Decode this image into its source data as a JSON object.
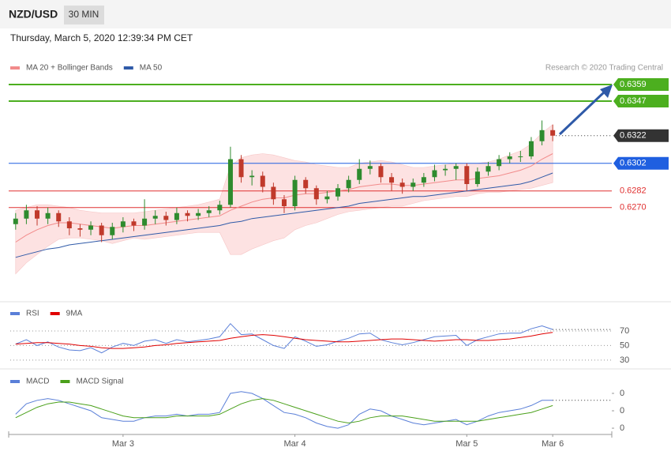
{
  "header": {
    "symbol": "NZD/USD",
    "interval": "30 MIN",
    "timestamp": "Thursday, March 5, 2020 12:39:34 PM CET"
  },
  "chart_data": [
    {
      "type": "candlestick",
      "credit": "Research © 2020 Trading Central",
      "ylim": [
        0.6203,
        0.6383
      ],
      "candles": {
        "up_color": "#2e8b2e",
        "down_color": "#c0392b",
        "open": [
          0.6258,
          0.6262,
          0.6268,
          0.6262,
          0.6266,
          0.626,
          0.6255,
          0.6254,
          0.6257,
          0.625,
          0.6256,
          0.626,
          0.6257,
          0.6262,
          0.6264,
          0.6261,
          0.6266,
          0.6264,
          0.6266,
          0.6268,
          0.6272,
          0.6305,
          0.6292,
          0.6293,
          0.6285,
          0.6276,
          0.6271,
          0.629,
          0.6284,
          0.6276,
          0.6278,
          0.6284,
          0.629,
          0.6298,
          0.63,
          0.6292,
          0.6288,
          0.6285,
          0.6288,
          0.6292,
          0.6297,
          0.6298,
          0.63,
          0.6287,
          0.6296,
          0.63,
          0.6305,
          0.6307,
          0.6307,
          0.6318,
          0.6326,
          null,
          null,
          null,
          null,
          null
        ],
        "high": [
          0.6266,
          0.6272,
          0.6271,
          0.627,
          0.6268,
          0.6263,
          0.6258,
          0.626,
          0.6259,
          0.6259,
          0.6263,
          0.6262,
          0.6276,
          0.6268,
          0.6267,
          0.627,
          0.6268,
          0.6269,
          0.6271,
          0.6275,
          0.6314,
          0.6308,
          0.6297,
          0.6296,
          0.6288,
          0.6279,
          0.6293,
          0.6292,
          0.6286,
          0.6282,
          0.6287,
          0.6293,
          0.6305,
          0.6304,
          0.6302,
          0.6295,
          0.6291,
          0.6291,
          0.6295,
          0.6301,
          0.6301,
          0.6302,
          0.6302,
          0.6299,
          0.6303,
          0.6308,
          0.631,
          0.6311,
          0.6321,
          0.6333,
          0.633,
          null,
          null,
          null,
          null,
          null
        ],
        "low": [
          0.6254,
          0.6258,
          0.6257,
          0.6258,
          0.6256,
          0.625,
          0.6249,
          0.625,
          0.6245,
          0.6247,
          0.6252,
          0.6253,
          0.6254,
          0.6258,
          0.6257,
          0.6258,
          0.626,
          0.6261,
          0.6263,
          0.6265,
          0.627,
          0.6288,
          0.6286,
          0.6281,
          0.6272,
          0.6266,
          0.6268,
          0.628,
          0.6272,
          0.6273,
          0.6275,
          0.6281,
          0.6287,
          0.6294,
          0.6288,
          0.6282,
          0.628,
          0.6282,
          0.6285,
          0.6289,
          0.6293,
          0.629,
          0.6282,
          0.6285,
          0.6293,
          0.6297,
          0.6302,
          0.6303,
          0.6305,
          0.6315,
          0.6318,
          null,
          null,
          null,
          null,
          null
        ],
        "close": [
          0.6262,
          0.6268,
          0.6262,
          0.6266,
          0.626,
          0.6255,
          0.6254,
          0.6257,
          0.625,
          0.6256,
          0.626,
          0.6257,
          0.6262,
          0.6264,
          0.6261,
          0.6266,
          0.6264,
          0.6266,
          0.6268,
          0.6272,
          0.6305,
          0.6292,
          0.6293,
          0.6285,
          0.6276,
          0.6271,
          0.629,
          0.6284,
          0.6276,
          0.6278,
          0.6284,
          0.629,
          0.6298,
          0.63,
          0.6292,
          0.6288,
          0.6285,
          0.6288,
          0.6292,
          0.6297,
          0.6298,
          0.63,
          0.6287,
          0.6296,
          0.63,
          0.6305,
          0.6307,
          0.6307,
          0.6318,
          0.6326,
          0.6322,
          null,
          null,
          null,
          null,
          null
        ]
      },
      "series": [
        {
          "name": "MA 20 + Bollinger Bands",
          "color": "#f28b8b",
          "band_color": "#fde2e2",
          "values": [
            0.6245,
            0.625,
            0.6254,
            0.6257,
            0.6259,
            0.6259,
            0.6258,
            0.6257,
            0.6256,
            0.6255,
            0.6256,
            0.6257,
            0.6257,
            0.6258,
            0.6259,
            0.626,
            0.6261,
            0.6262,
            0.6263,
            0.6264,
            0.6268,
            0.6271,
            0.6274,
            0.6276,
            0.6277,
            0.6277,
            0.6279,
            0.628,
            0.628,
            0.6281,
            0.6282,
            0.6283,
            0.6285,
            0.6286,
            0.6287,
            0.6287,
            0.6286,
            0.6286,
            0.6287,
            0.6288,
            0.6289,
            0.629,
            0.629,
            0.6291,
            0.6292,
            0.6293,
            0.6295,
            0.6297,
            0.63,
            0.6305,
            0.6309,
            null,
            null,
            null,
            null,
            null
          ],
          "upper": [
            0.6268,
            0.627,
            0.6272,
            0.6272,
            0.6271,
            0.627,
            0.6268,
            0.6267,
            0.6266,
            0.6266,
            0.6266,
            0.6266,
            0.6267,
            0.6268,
            0.6269,
            0.627,
            0.6271,
            0.6272,
            0.6274,
            0.6276,
            0.63,
            0.6306,
            0.6308,
            0.6309,
            0.6308,
            0.6306,
            0.6304,
            0.6303,
            0.6301,
            0.63,
            0.6299,
            0.6299,
            0.6302,
            0.6303,
            0.6304,
            0.6303,
            0.6301,
            0.6299,
            0.6299,
            0.63,
            0.6301,
            0.6302,
            0.6302,
            0.6302,
            0.6303,
            0.6305,
            0.6308,
            0.6311,
            0.6316,
            0.6324,
            0.633,
            null,
            null,
            null,
            null,
            null
          ],
          "lower": [
            0.6222,
            0.623,
            0.6236,
            0.6242,
            0.6247,
            0.6248,
            0.6248,
            0.6247,
            0.6246,
            0.6244,
            0.6246,
            0.6248,
            0.6247,
            0.6248,
            0.6249,
            0.625,
            0.6251,
            0.6252,
            0.6252,
            0.6252,
            0.6236,
            0.6236,
            0.624,
            0.6243,
            0.6246,
            0.6248,
            0.6254,
            0.6257,
            0.6259,
            0.6262,
            0.6265,
            0.6267,
            0.6268,
            0.6269,
            0.627,
            0.6271,
            0.6271,
            0.6273,
            0.6275,
            0.6276,
            0.6277,
            0.6278,
            0.6278,
            0.628,
            0.6281,
            0.6281,
            0.6282,
            0.6283,
            0.6284,
            0.6286,
            0.6288,
            null,
            null,
            null,
            null,
            null
          ]
        },
        {
          "name": "MA 50",
          "color": "#2f5aa8",
          "values": [
            0.6234,
            0.6236,
            0.6238,
            0.624,
            0.6241,
            0.6243,
            0.6244,
            0.6245,
            0.6246,
            0.6247,
            0.6248,
            0.6249,
            0.625,
            0.6251,
            0.6252,
            0.6253,
            0.6254,
            0.6255,
            0.6256,
            0.6257,
            0.6259,
            0.626,
            0.6262,
            0.6263,
            0.6264,
            0.6265,
            0.6266,
            0.6267,
            0.6268,
            0.6269,
            0.627,
            0.6271,
            0.6273,
            0.6274,
            0.6275,
            0.6276,
            0.6277,
            0.6278,
            0.6278,
            0.6279,
            0.628,
            0.6281,
            0.6282,
            0.6283,
            0.6284,
            0.6285,
            0.6286,
            0.6287,
            0.6289,
            0.6292,
            0.6295,
            null,
            null,
            null,
            null,
            null
          ]
        }
      ],
      "levels": [
        {
          "value": 0.6359,
          "color": "#4caf1f",
          "line": "solid",
          "style": "box"
        },
        {
          "value": 0.6347,
          "color": "#4caf1f",
          "line": "solid",
          "style": "box"
        },
        {
          "value": 0.6322,
          "color": "#333333",
          "line": "dotted",
          "style": "box"
        },
        {
          "value": 0.6302,
          "color": "#1f5fe0",
          "line": "solid",
          "style": "box"
        },
        {
          "value": 0.6282,
          "color": "#e03030",
          "line": "solid",
          "style": "text"
        },
        {
          "value": 0.627,
          "label": "0.6270",
          "color": "#e03030",
          "line": "solid",
          "style": "text"
        }
      ]
    },
    {
      "type": "line",
      "ylim": [
        18,
        110
      ],
      "yticks": [
        70,
        50,
        30
      ],
      "grid": true,
      "series": [
        {
          "name": "RSI",
          "color": "#5a7fd8",
          "values": [
            52,
            58,
            50,
            55,
            48,
            44,
            43,
            47,
            40,
            48,
            53,
            50,
            56,
            58,
            53,
            58,
            55,
            57,
            59,
            62,
            80,
            65,
            66,
            58,
            50,
            46,
            62,
            56,
            49,
            51,
            56,
            60,
            66,
            67,
            58,
            54,
            51,
            54,
            58,
            62,
            63,
            64,
            50,
            58,
            62,
            66,
            67,
            67,
            73,
            77,
            72,
            null,
            null,
            null,
            null,
            null
          ]
        },
        {
          "name": "9MA",
          "color": "#e00000",
          "values": [
            52,
            53,
            54,
            54,
            53,
            52,
            50,
            49,
            47,
            46,
            46,
            47,
            48,
            50,
            51,
            53,
            54,
            55,
            56,
            57,
            60,
            62,
            64,
            65,
            64,
            62,
            60,
            58,
            57,
            56,
            55,
            55,
            56,
            57,
            58,
            59,
            59,
            58,
            57,
            56,
            57,
            58,
            58,
            57,
            57,
            58,
            59,
            61,
            63,
            66,
            68,
            null,
            null,
            null,
            null,
            null
          ]
        }
      ]
    },
    {
      "type": "line",
      "ylim": [
        -0.00136,
        0.00236
      ],
      "yticks": [
        {
          "value": 0.001,
          "label": "0"
        },
        0,
        {
          "value": -0.001,
          "label": "0"
        }
      ],
      "grid": false,
      "categories": [
        null,
        null,
        null,
        null,
        null,
        null,
        null,
        null,
        null,
        null,
        "Mar 3",
        null,
        null,
        null,
        null,
        null,
        null,
        null,
        null,
        null,
        null,
        null,
        null,
        null,
        null,
        null,
        "Mar 4",
        null,
        null,
        null,
        null,
        null,
        null,
        null,
        null,
        null,
        null,
        null,
        null,
        null,
        null,
        null,
        "Mar 5",
        null,
        null,
        null,
        null,
        null,
        null,
        null,
        "Mar 6",
        null,
        null,
        null,
        null,
        null
      ],
      "series": [
        {
          "name": "MACD",
          "color": "#5a7fd8",
          "values": [
            -0.0002,
            0.0004,
            0.0006,
            0.0007,
            0.0006,
            0.0004,
            0.0002,
            0,
            -0.0004,
            -0.0005,
            -0.0006,
            -0.0006,
            -0.0004,
            -0.0003,
            -0.0003,
            -0.0002,
            -0.0003,
            -0.0002,
            -0.0002,
            -0.0001,
            0.001,
            0.0011,
            0.001,
            0.0007,
            0.0003,
            -0.0001,
            -0.0002,
            -0.0004,
            -0.0007,
            -0.0009,
            -0.001,
            -0.0008,
            -0.0002,
            0.0001,
            0,
            -0.0003,
            -0.0005,
            -0.0007,
            -0.0008,
            -0.0007,
            -0.0006,
            -0.0005,
            -0.0008,
            -0.0006,
            -0.0003,
            -0.0001,
            0,
            0.0001,
            0.0003,
            0.0006,
            0.0006,
            null,
            null,
            null,
            null,
            null
          ]
        },
        {
          "name": "MACD Signal",
          "color": "#4aa01a",
          "values": [
            -0.0004,
            -0.0001,
            0.0002,
            0.0004,
            0.0005,
            0.0005,
            0.0004,
            0.0003,
            0.0001,
            -0.0001,
            -0.0003,
            -0.0004,
            -0.0004,
            -0.0004,
            -0.0004,
            -0.0003,
            -0.0003,
            -0.0003,
            -0.0003,
            -0.0002,
            0.0001,
            0.0004,
            0.0006,
            0.0007,
            0.0006,
            0.0004,
            0.0002,
            0,
            -0.0002,
            -0.0004,
            -0.0006,
            -0.0007,
            -0.0006,
            -0.0004,
            -0.0003,
            -0.0003,
            -0.0003,
            -0.0004,
            -0.0005,
            -0.0006,
            -0.0006,
            -0.0006,
            -0.0006,
            -0.0006,
            -0.0005,
            -0.0004,
            -0.0003,
            -0.0002,
            -0.0001,
            0.0001,
            0.0003,
            null,
            null,
            null,
            null,
            null
          ]
        }
      ]
    }
  ]
}
